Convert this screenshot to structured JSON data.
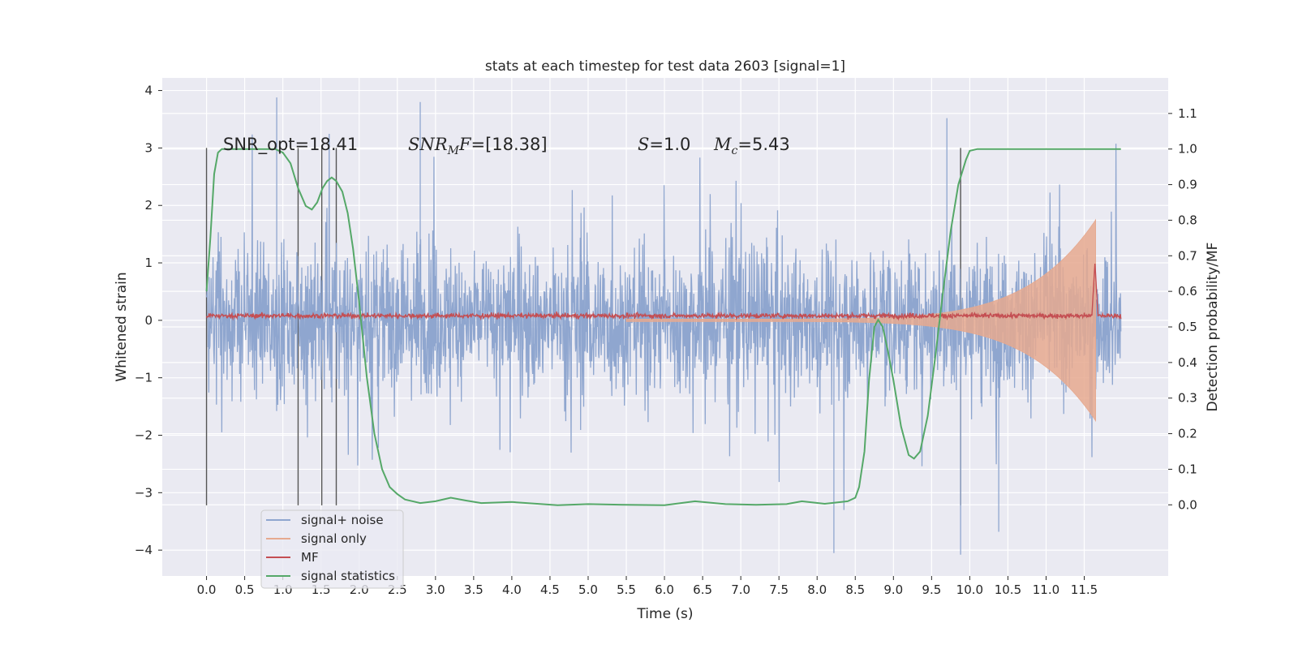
{
  "chart_data": {
    "type": "line",
    "title": "stats at each timestep for test data 2603 [signal=1]",
    "xlabel": "Time (s)",
    "ylabel": "Whitened strain",
    "ylabel_right": "Detection probability/MF",
    "xlim": [
      -0.58,
      12.6
    ],
    "ylim": [
      -4.45,
      4.22
    ],
    "ylim_right": [
      -0.2,
      1.2
    ],
    "x_ticks": [
      "0.0",
      "0.5",
      "1.0",
      "1.5",
      "2.0",
      "2.5",
      "3.0",
      "3.5",
      "4.0",
      "4.5",
      "5.0",
      "5.5",
      "6.0",
      "6.5",
      "7.0",
      "7.5",
      "8.0",
      "8.5",
      "9.0",
      "9.5",
      "10.0",
      "10.5",
      "11.0",
      "11.5"
    ],
    "y_ticks": [
      "4",
      "3",
      "2",
      "1",
      "0",
      "−1",
      "−2",
      "−3",
      "−4"
    ],
    "y_ticks_right": [
      "1.1",
      "1.0",
      "0.9",
      "0.8",
      "0.7",
      "0.6",
      "0.5",
      "0.4",
      "0.3",
      "0.2",
      "0.1",
      "0.0"
    ],
    "grid": true,
    "legend_placement": "lower-left",
    "annotations": {
      "snr_opt": "SNR_opt=18.41",
      "snr_mf_sym": "SNR",
      "snr_mf_sub": "M",
      "snr_mf_rest": "F",
      "snr_mf_val": "=[18.38]",
      "s_sym": "S",
      "s_val": "=1.0",
      "mc_sym": "M",
      "mc_sub": "c",
      "mc_val": "=5.43"
    },
    "vertical_lines_x": [
      0.0,
      1.2,
      1.51,
      1.7,
      9.88
    ],
    "series": [
      {
        "name": "signal+ noise",
        "color": "#8fa6cf",
        "t_end": 11.98,
        "noise_envelope_typical": 1.9,
        "extremes": [
          {
            "x": 0.92,
            "y": 3.88
          },
          {
            "x": 2.8,
            "y": 3.8
          },
          {
            "x": 9.7,
            "y": 3.52
          },
          {
            "x": 8.22,
            "y": -4.05
          },
          {
            "x": 9.88,
            "y": -4.08
          },
          {
            "x": 10.38,
            "y": -3.68
          }
        ]
      },
      {
        "name": "signal only",
        "color": "#e6a98f",
        "t_start": 5.5,
        "t_end": 11.65,
        "envelope_start": 0.02,
        "envelope_end": 1.75
      },
      {
        "name": "MF",
        "color": "#c44e52",
        "baseline": 0.08,
        "peak_x": 11.64,
        "peak_y": 1.0
      },
      {
        "name": "signal statistics",
        "color": "#55a868",
        "axis": "right",
        "x": [
          0.0,
          0.05,
          0.1,
          0.15,
          0.2,
          0.3,
          0.5,
          0.7,
          0.9,
          1.0,
          1.1,
          1.2,
          1.3,
          1.38,
          1.45,
          1.52,
          1.58,
          1.64,
          1.7,
          1.78,
          1.85,
          1.92,
          2.0,
          2.1,
          2.2,
          2.3,
          2.4,
          2.5,
          2.6,
          2.8,
          3.0,
          3.2,
          3.4,
          3.6,
          4.0,
          4.6,
          5.0,
          5.5,
          6.0,
          6.4,
          6.8,
          7.2,
          7.6,
          7.8,
          8.1,
          8.4,
          8.5,
          8.55,
          8.62,
          8.68,
          8.75,
          8.8,
          8.86,
          8.93,
          9.0,
          9.1,
          9.2,
          9.27,
          9.35,
          9.45,
          9.55,
          9.65,
          9.75,
          9.85,
          9.95,
          10.0,
          10.1,
          10.3,
          11.0,
          11.5,
          11.98
        ],
        "y": [
          0.6,
          0.75,
          0.93,
          0.99,
          1.0,
          1.0,
          1.0,
          1.0,
          1.0,
          0.99,
          0.96,
          0.89,
          0.84,
          0.83,
          0.85,
          0.89,
          0.91,
          0.92,
          0.91,
          0.88,
          0.82,
          0.72,
          0.57,
          0.36,
          0.2,
          0.1,
          0.05,
          0.03,
          0.015,
          0.005,
          0.01,
          0.02,
          0.012,
          0.005,
          0.008,
          -0.001,
          0.002,
          0.0,
          -0.001,
          0.01,
          0.002,
          0.0,
          0.002,
          0.01,
          0.003,
          0.01,
          0.02,
          0.05,
          0.15,
          0.35,
          0.5,
          0.52,
          0.5,
          0.43,
          0.35,
          0.22,
          0.14,
          0.13,
          0.15,
          0.25,
          0.42,
          0.6,
          0.77,
          0.9,
          0.97,
          0.995,
          1.0,
          1.0,
          1.0,
          1.0,
          1.0
        ]
      }
    ]
  }
}
